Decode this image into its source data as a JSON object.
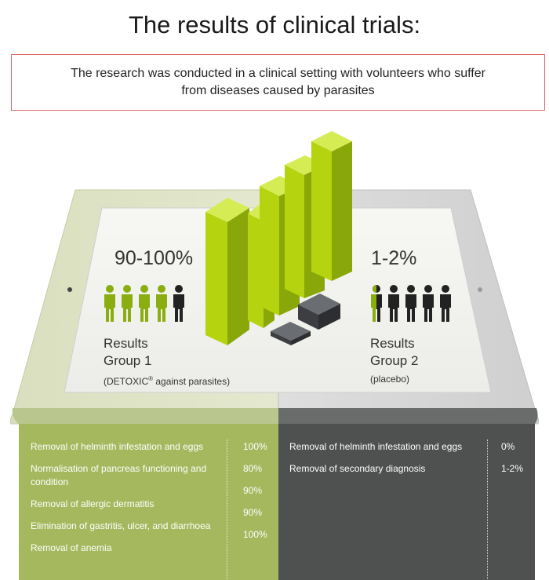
{
  "title": "The results of clinical trials:",
  "intro": "The research was conducted in a clinical setting with volunteers who suffer from diseases caused by parasites",
  "group1": {
    "percent": "90-100%",
    "label_line1": "Results",
    "label_line2": "Group 1",
    "sub_prefix": "(DETOXIC",
    "sub_reg": "®",
    "sub_suffix": " against parasites)",
    "people_total": 5,
    "people_active": 4
  },
  "group2": {
    "percent": "1-2%",
    "label_line1": "Results",
    "label_line2": "Group 2",
    "sub": "(placebo)",
    "people_total": 5,
    "people_active": 0.5
  },
  "left_panel": {
    "items": [
      "Removal of helminth infestation and eggs",
      "Normalisation of pancreas functioning and condition",
      "Removal of allergic dermatitis",
      "Elimination of gastritis, ulcer, and diarrhoea",
      "Removal of anemia"
    ],
    "values": [
      "100%",
      "80%",
      "90%",
      "90%",
      "100%"
    ]
  },
  "right_panel": {
    "items": [
      "Removal of helminth infestation and eggs",
      "Removal of secondary diagnosis"
    ],
    "values": [
      "0%",
      "1-2%"
    ]
  },
  "colors": {
    "green": "#a5b85e",
    "green_bar": "#b5d30e",
    "dark": "#4f5050",
    "person_green": "#8aad10",
    "person_dark": "#222222"
  }
}
